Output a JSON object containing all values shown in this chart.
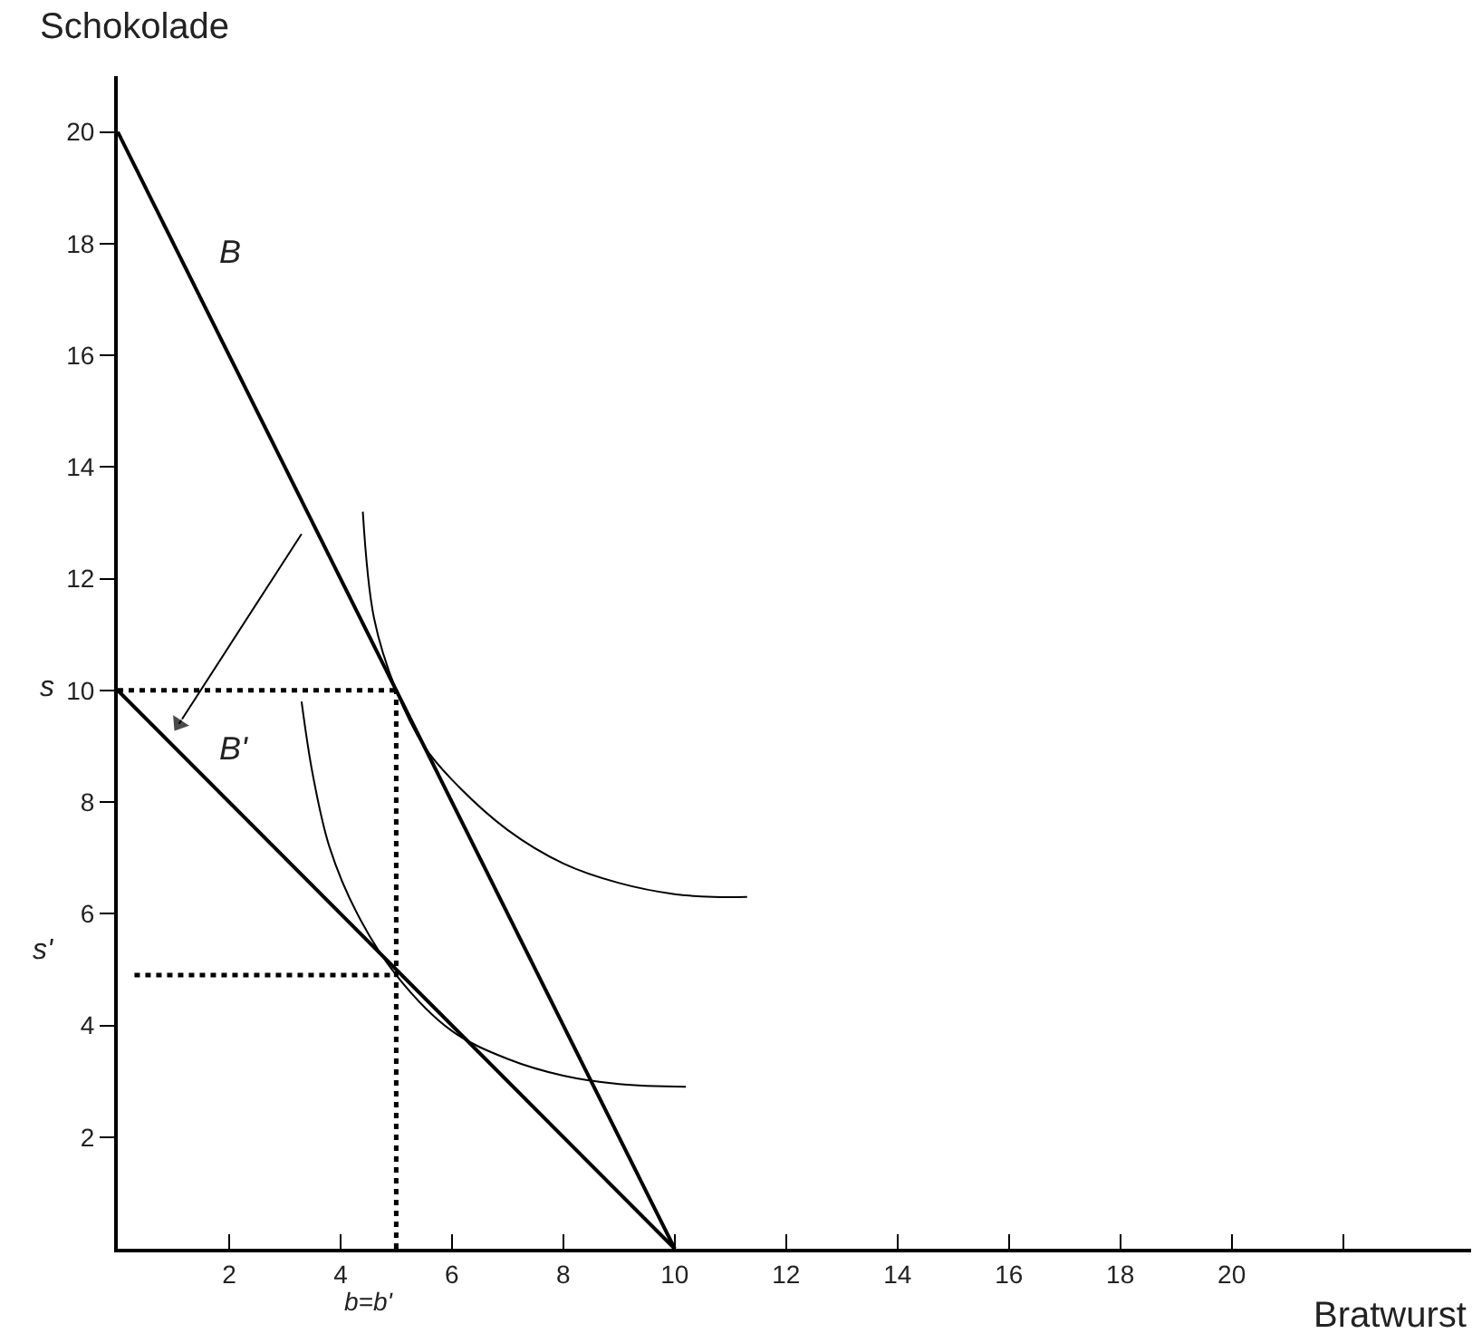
{
  "chart_data": {
    "type": "line",
    "xlabel": "Bratwurst",
    "ylabel": "Schokolade",
    "xlim": [
      0,
      24.3
    ],
    "ylim": [
      0,
      21
    ],
    "xticks": [
      2,
      4,
      6,
      8,
      10,
      12,
      14,
      16,
      18,
      20,
      {
        "value": 22,
        "label": null
      }
    ],
    "yticks": [
      2,
      4,
      6,
      8,
      10,
      12,
      14,
      16,
      18,
      20
    ],
    "legend": false,
    "marker": "none",
    "series": [
      {
        "name": "B",
        "color": "#000000",
        "x": [
          0,
          10
        ],
        "values": [
          20,
          0
        ],
        "line_style": "solid"
      },
      {
        "name": "B'",
        "color": "#000000",
        "x": [
          0,
          10
        ],
        "values": [
          10,
          0
        ],
        "line_style": "solid"
      },
      {
        "color": "#000000",
        "x": [
          4.4,
          4.6,
          5,
          5.5,
          6,
          7,
          8,
          9,
          10,
          10.7,
          11.3
        ],
        "values": [
          13.2,
          11.3,
          10,
          9.0,
          8.4,
          7.5,
          6.9,
          6.55,
          6.35,
          6.3,
          6.3
        ],
        "line_style": "solid"
      },
      {
        "color": "#000000",
        "x": [
          3.3,
          3.5,
          3.8,
          4.3,
          5,
          6,
          7,
          8,
          9,
          10.2
        ],
        "values": [
          9.8,
          8.5,
          7.2,
          6.0,
          4.9,
          3.9,
          3.4,
          3.1,
          2.95,
          2.9
        ],
        "line_style": "solid"
      },
      {
        "color": "#000000",
        "x": [
          0,
          5
        ],
        "values": [
          10,
          10
        ],
        "line_style": "dotted"
      },
      {
        "color": "#000000",
        "x": [
          5,
          5
        ],
        "values": [
          0,
          10
        ],
        "line_style": "dotted"
      },
      {
        "color": "#000000",
        "x": [
          0.3,
          5
        ],
        "values": [
          4.9,
          4.9
        ],
        "line_style": "dotted"
      },
      {
        "color": "#000000",
        "x": [
          3.3,
          1.1
        ],
        "values": [
          12.8,
          9.4
        ],
        "line_style": "solid",
        "marker": "triangle"
      }
    ],
    "annotations": [
      "s",
      "s'",
      "b=b'"
    ]
  }
}
